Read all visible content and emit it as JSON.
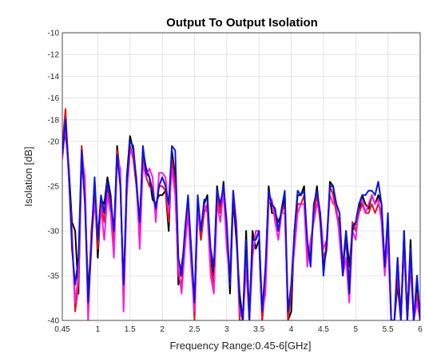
{
  "chart_data": {
    "type": "line",
    "title": "Output To Output Isolation",
    "xlabel": "Frequency Range:0.45-6[GHz]",
    "ylabel": "Isolation [dB]",
    "xlim": [
      0.45,
      6
    ],
    "ylim": [
      -40,
      -10
    ],
    "xticks": [
      0.45,
      1,
      1.5,
      2,
      2.5,
      3,
      3.5,
      4,
      4.5,
      5,
      5.5,
      6
    ],
    "xtick_labels": [
      "0.45",
      "1",
      "1.5",
      "2",
      "2.5",
      "3",
      "3.5",
      "4",
      "4.5",
      "5",
      "5.5",
      "6"
    ],
    "yticks": [
      -40,
      -35,
      -30,
      -25,
      -20,
      -18,
      -16,
      -14,
      -12,
      -10
    ],
    "ytick_labels": [
      "-40",
      "-35",
      "-30",
      "-25",
      "-20",
      "-18",
      "-16",
      "-14",
      "-12",
      "-10"
    ],
    "y_scale": "nonlinear: -40 to -20 in 5 dB steps, -20 to -10 in 2 dB steps (expanded)",
    "grid": true,
    "legend": "none",
    "series": [
      {
        "color": "#000000",
        "x": [
          0.45,
          0.5,
          0.55,
          0.6,
          0.65,
          0.7,
          0.75,
          0.8,
          0.85,
          0.9,
          0.95,
          1.0,
          1.05,
          1.1,
          1.15,
          1.2,
          1.25,
          1.3,
          1.35,
          1.4,
          1.45,
          1.5,
          1.55,
          1.6,
          1.65,
          1.7,
          1.75,
          1.8,
          1.85,
          1.9,
          1.95,
          2.0,
          2.05,
          2.1,
          2.15,
          2.2,
          2.25,
          2.3,
          2.35,
          2.4,
          2.45,
          2.5,
          2.55,
          2.6,
          2.65,
          2.7,
          2.75,
          2.8,
          2.85,
          2.9,
          2.95,
          3.0,
          3.05,
          3.1,
          3.15,
          3.2,
          3.25,
          3.3,
          3.35,
          3.4,
          3.45,
          3.5,
          3.55,
          3.6,
          3.65,
          3.7,
          3.75,
          3.8,
          3.85,
          3.9,
          3.95,
          4.0,
          4.05,
          4.1,
          4.15,
          4.2,
          4.25,
          4.3,
          4.35,
          4.4,
          4.45,
          4.5,
          4.55,
          4.6,
          4.65,
          4.7,
          4.75,
          4.8,
          4.85,
          4.9,
          4.95,
          5.0,
          5.05,
          5.1,
          5.15,
          5.2,
          5.25,
          5.3,
          5.35,
          5.4,
          5.45,
          5.5,
          5.55,
          5.6,
          5.65,
          5.7,
          5.75,
          5.8,
          5.85,
          5.9,
          5.95,
          6.0
        ],
        "y": [
          -21,
          -19.2,
          -23,
          -29,
          -30,
          -37,
          -22,
          -26,
          -37,
          -31,
          -24.5,
          -33,
          -26.5,
          -27,
          -24,
          -26,
          -31,
          -20.5,
          -24,
          -38,
          -24,
          -19.5,
          -21,
          -25,
          -30,
          -21,
          -23,
          -24,
          -26.5,
          -27,
          -26,
          -26,
          -25.5,
          -30,
          -21,
          -24,
          -36,
          -34,
          -31,
          -27,
          -32,
          -39.5,
          -27,
          -31,
          -27,
          -26,
          -33,
          -35,
          -25,
          -28,
          -24.5,
          -30,
          -37,
          -26.5,
          -31,
          -37,
          -40,
          -30,
          -40,
          -30,
          -32,
          -31,
          -40,
          -35,
          -25,
          -28,
          -28,
          -29,
          -28,
          -26,
          -40,
          -39,
          -30,
          -26,
          -26,
          -25,
          -32,
          -33,
          -27.5,
          -25,
          -29,
          -34,
          -32,
          -24.5,
          -25,
          -28,
          -29,
          -34,
          -30,
          -34,
          -30,
          -29,
          -28,
          -26,
          -27,
          -27.5,
          -26,
          -27,
          -26,
          -27,
          -34,
          -29,
          -40,
          -40,
          -36,
          -40,
          -30,
          -40,
          -31,
          -40,
          -36,
          -40
        ]
      },
      {
        "color": "#e8101c",
        "x": [
          0.45,
          0.5,
          0.55,
          0.6,
          0.65,
          0.7,
          0.75,
          0.8,
          0.85,
          0.9,
          0.95,
          1.0,
          1.05,
          1.1,
          1.15,
          1.2,
          1.25,
          1.3,
          1.35,
          1.4,
          1.45,
          1.5,
          1.55,
          1.6,
          1.65,
          1.7,
          1.75,
          1.8,
          1.85,
          1.9,
          1.95,
          2.0,
          2.05,
          2.1,
          2.15,
          2.2,
          2.25,
          2.3,
          2.35,
          2.4,
          2.45,
          2.5,
          2.55,
          2.6,
          2.65,
          2.7,
          2.75,
          2.8,
          2.85,
          2.9,
          2.95,
          3.0,
          3.05,
          3.1,
          3.15,
          3.2,
          3.25,
          3.3,
          3.35,
          3.4,
          3.45,
          3.5,
          3.55,
          3.6,
          3.65,
          3.7,
          3.75,
          3.8,
          3.85,
          3.9,
          3.95,
          4.0,
          4.05,
          4.1,
          4.15,
          4.2,
          4.25,
          4.3,
          4.35,
          4.4,
          4.45,
          4.5,
          4.55,
          4.6,
          4.65,
          4.7,
          4.75,
          4.8,
          4.85,
          4.9,
          4.95,
          5.0,
          5.05,
          5.1,
          5.15,
          5.2,
          5.25,
          5.3,
          5.35,
          5.4,
          5.45,
          5.5,
          5.55,
          5.6,
          5.65,
          5.7,
          5.75,
          5.8,
          5.85,
          5.9,
          5.95,
          6.0
        ],
        "y": [
          -20.5,
          -17,
          -24,
          -30,
          -39,
          -36,
          -20.5,
          -25,
          -39,
          -30,
          -26,
          -32,
          -27,
          -29,
          -25,
          -27,
          -32,
          -21,
          -24,
          -38,
          -25,
          -20.5,
          -22,
          -25,
          -31,
          -22,
          -24,
          -25,
          -25.5,
          -28,
          -25,
          -25,
          -25.5,
          -29,
          -22,
          -25,
          -35,
          -36,
          -31,
          -27,
          -33,
          -40,
          -27,
          -31,
          -28,
          -27,
          -34,
          -36,
          -26,
          -28,
          -25,
          -31,
          -36,
          -26,
          -30,
          -40,
          -40,
          -32,
          -40,
          -31,
          -31,
          -30,
          -40,
          -36,
          -26,
          -27,
          -28,
          -30,
          -28,
          -27,
          -40,
          -37,
          -31,
          -27,
          -27,
          -26,
          -33,
          -32,
          -28,
          -26,
          -29,
          -33,
          -32,
          -25,
          -26,
          -28,
          -30,
          -34,
          -31,
          -36,
          -29,
          -30,
          -28,
          -27,
          -28,
          -28,
          -27,
          -28,
          -27,
          -28,
          -34,
          -30,
          -40,
          -40,
          -35,
          -40,
          -31,
          -40,
          -32,
          -40,
          -37,
          -40
        ]
      },
      {
        "color": "#ff1adb",
        "x": [
          0.45,
          0.5,
          0.55,
          0.6,
          0.65,
          0.7,
          0.75,
          0.8,
          0.85,
          0.9,
          0.95,
          1.0,
          1.05,
          1.1,
          1.15,
          1.2,
          1.25,
          1.3,
          1.35,
          1.4,
          1.45,
          1.5,
          1.55,
          1.6,
          1.65,
          1.7,
          1.75,
          1.8,
          1.85,
          1.9,
          1.95,
          2.0,
          2.05,
          2.1,
          2.15,
          2.2,
          2.25,
          2.3,
          2.35,
          2.4,
          2.45,
          2.5,
          2.55,
          2.6,
          2.65,
          2.7,
          2.75,
          2.8,
          2.85,
          2.9,
          2.95,
          3.0,
          3.05,
          3.1,
          3.15,
          3.2,
          3.25,
          3.3,
          3.35,
          3.4,
          3.45,
          3.5,
          3.55,
          3.6,
          3.65,
          3.7,
          3.75,
          3.8,
          3.85,
          3.9,
          3.95,
          4.0,
          4.05,
          4.1,
          4.15,
          4.2,
          4.25,
          4.3,
          4.35,
          4.4,
          4.45,
          4.5,
          4.55,
          4.6,
          4.65,
          4.7,
          4.75,
          4.8,
          4.85,
          4.9,
          4.95,
          5.0,
          5.05,
          5.1,
          5.15,
          5.2,
          5.25,
          5.3,
          5.35,
          5.4,
          5.45,
          5.5,
          5.55,
          5.6,
          5.65,
          5.7,
          5.75,
          5.8,
          5.85,
          5.9,
          5.95,
          6.0
        ],
        "y": [
          -22,
          -18.5,
          -24,
          -31,
          -38,
          -35,
          -21.5,
          -24,
          -40,
          -31,
          -27,
          -30,
          -27.5,
          -31,
          -26,
          -28,
          -33,
          -22,
          -23,
          -39,
          -26,
          -21,
          -21.5,
          -24,
          -32,
          -22.5,
          -24,
          -23,
          -24,
          -29,
          -23.5,
          -23.5,
          -24,
          -28,
          -23,
          -26,
          -34,
          -37,
          -32,
          -28,
          -34,
          -39,
          -28,
          -30,
          -27,
          -28,
          -35,
          -37,
          -27,
          -29,
          -25.5,
          -32,
          -35,
          -25.5,
          -29,
          -39,
          -40,
          -34,
          -40,
          -33,
          -30,
          -30,
          -39,
          -37,
          -27,
          -26.5,
          -29,
          -31,
          -28,
          -28,
          -39,
          -36,
          -32,
          -28,
          -27,
          -27,
          -34,
          -31,
          -29,
          -27,
          -28,
          -32,
          -31,
          -26,
          -27,
          -27,
          -31,
          -35,
          -33,
          -38,
          -30,
          -31,
          -27,
          -26.5,
          -28,
          -27,
          -26,
          -27,
          -26.5,
          -29,
          -35,
          -31,
          -40,
          -40,
          -33,
          -40,
          -32,
          -40,
          -34,
          -40,
          -38,
          -40
        ]
      },
      {
        "color": "#0a14e6",
        "x": [
          0.45,
          0.5,
          0.55,
          0.6,
          0.65,
          0.7,
          0.75,
          0.8,
          0.85,
          0.9,
          0.95,
          1.0,
          1.05,
          1.1,
          1.15,
          1.2,
          1.25,
          1.3,
          1.35,
          1.4,
          1.45,
          1.5,
          1.55,
          1.6,
          1.65,
          1.7,
          1.75,
          1.8,
          1.85,
          1.9,
          1.95,
          2.0,
          2.05,
          2.1,
          2.15,
          2.2,
          2.25,
          2.3,
          2.35,
          2.4,
          2.45,
          2.5,
          2.55,
          2.6,
          2.65,
          2.7,
          2.75,
          2.8,
          2.85,
          2.9,
          2.95,
          3.0,
          3.05,
          3.1,
          3.15,
          3.2,
          3.25,
          3.3,
          3.35,
          3.4,
          3.45,
          3.5,
          3.55,
          3.6,
          3.65,
          3.7,
          3.75,
          3.8,
          3.85,
          3.9,
          3.95,
          4.0,
          4.05,
          4.1,
          4.15,
          4.2,
          4.25,
          4.3,
          4.35,
          4.4,
          4.45,
          4.5,
          4.55,
          4.6,
          4.65,
          4.7,
          4.75,
          4.8,
          4.85,
          4.9,
          4.95,
          5.0,
          5.05,
          5.1,
          5.15,
          5.2,
          5.25,
          5.3,
          5.35,
          5.4,
          5.45,
          5.5,
          5.55,
          5.6,
          5.65,
          5.7,
          5.75,
          5.8,
          5.85,
          5.9,
          5.95,
          6.0
        ],
        "y": [
          -21.5,
          -18,
          -23,
          -32,
          -36,
          -33,
          -21,
          -27,
          -38,
          -32,
          -24,
          -31,
          -26,
          -28,
          -24.5,
          -26.5,
          -30,
          -21.5,
          -25,
          -36,
          -24.5,
          -20,
          -20.5,
          -24.5,
          -29,
          -20.5,
          -23.5,
          -24,
          -25.5,
          -27.5,
          -25,
          -24,
          -25,
          -27,
          -20.5,
          -21,
          -33,
          -35,
          -30,
          -26,
          -32,
          -38,
          -26,
          -30,
          -26.5,
          -26.5,
          -32,
          -34,
          -25.5,
          -27,
          -25,
          -29,
          -36,
          -25.5,
          -30,
          -38,
          -40,
          -31,
          -40,
          -31,
          -31,
          -30,
          -39,
          -34,
          -25.5,
          -27,
          -27.5,
          -30,
          -27.5,
          -25.5,
          -39,
          -36,
          -30,
          -25.5,
          -26,
          -25.5,
          -31,
          -34,
          -27,
          -25.5,
          -28,
          -35,
          -31,
          -25,
          -25,
          -27,
          -28,
          -35,
          -30,
          -37,
          -29.5,
          -29,
          -27,
          -26,
          -26,
          -25.5,
          -25.5,
          -26,
          -24.5,
          -27,
          -34,
          -28,
          -40,
          -40,
          -33,
          -40,
          -30,
          -40,
          -32,
          -40,
          -35,
          -40
        ]
      }
    ]
  }
}
